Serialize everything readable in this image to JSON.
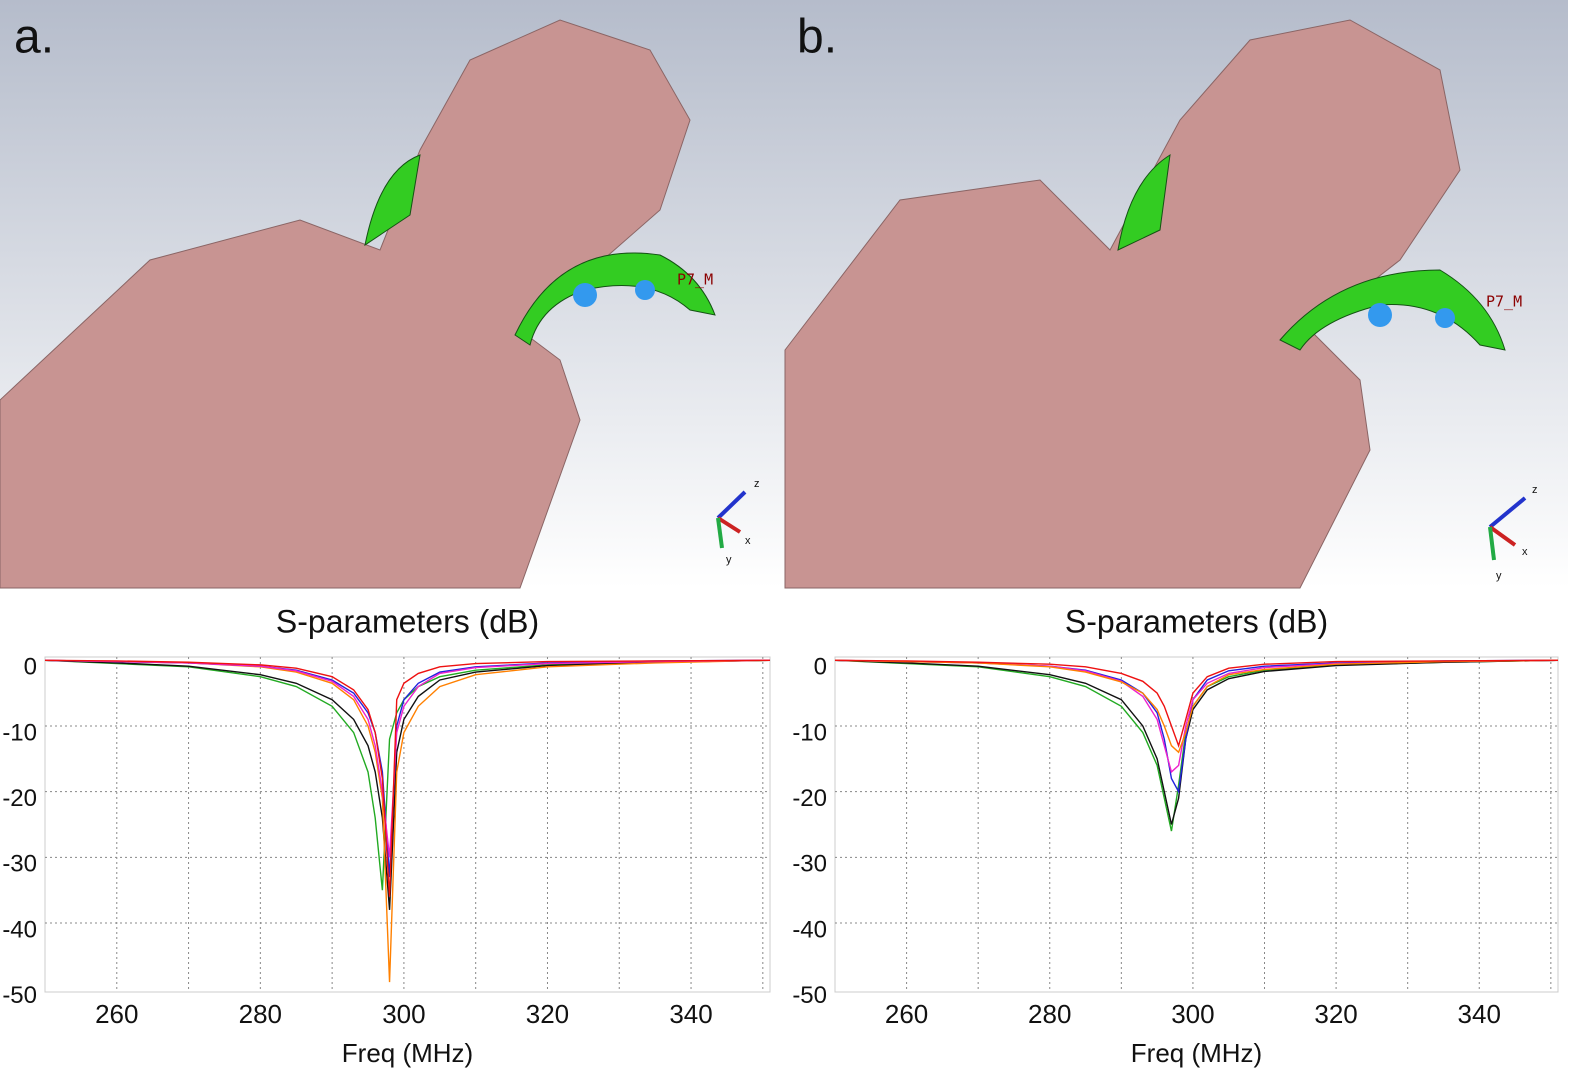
{
  "panels": [
    {
      "label": "a.",
      "annotation": "P7_M",
      "triad": [
        "z",
        "x",
        "y"
      ]
    },
    {
      "label": "b.",
      "annotation": "P7_M",
      "triad": [
        "z",
        "x",
        "y"
      ]
    }
  ],
  "chart_data": [
    {
      "type": "line",
      "title": "S-parameters (dB)",
      "xlabel": "Freq (MHz)",
      "x": [
        250,
        260,
        270,
        280,
        285,
        290,
        293,
        295,
        296,
        297,
        298,
        299,
        300,
        302,
        305,
        310,
        320,
        335,
        351
      ],
      "xlim": [
        250,
        351
      ],
      "xticks": [
        260,
        280,
        300,
        320,
        340
      ],
      "xgrid": [
        270,
        290,
        310,
        330,
        350
      ],
      "ylim": [
        -50.5,
        0.5
      ],
      "yticks": [
        0,
        -10,
        -20,
        -30,
        -40,
        -50
      ],
      "grid": true,
      "series": [
        {
          "color": "#22aa22",
          "values": [
            0,
            -0.5,
            -1,
            -2.5,
            -4,
            -7,
            -11,
            -17,
            -24,
            -35,
            -12,
            -8,
            -6,
            -4,
            -2.5,
            -1.5,
            -0.7,
            -0.3,
            0
          ]
        },
        {
          "color": "#111111",
          "values": [
            0,
            -0.4,
            -0.9,
            -2.2,
            -3.5,
            -6,
            -9,
            -13,
            -17,
            -24,
            -38,
            -14,
            -9,
            -5.5,
            -3,
            -1.8,
            -0.8,
            -0.3,
            0
          ]
        },
        {
          "color": "#ff8000",
          "values": [
            0,
            -0.2,
            -0.4,
            -1,
            -1.8,
            -3.5,
            -6,
            -10,
            -14,
            -21,
            -49,
            -17,
            -11,
            -7,
            -4,
            -2.2,
            -1,
            -0.4,
            0
          ]
        },
        {
          "color": "#2222dd",
          "values": [
            0,
            -0.2,
            -0.4,
            -0.9,
            -1.5,
            -3,
            -5,
            -8,
            -11,
            -17,
            -33,
            -10,
            -6,
            -3.5,
            -1.8,
            -1,
            -0.4,
            -0.1,
            0
          ]
        },
        {
          "color": "#ee22cc",
          "values": [
            0,
            -0.2,
            -0.4,
            -0.9,
            -1.6,
            -3.2,
            -5.5,
            -9,
            -13,
            -20,
            -30,
            -11,
            -7,
            -4,
            -2,
            -1.1,
            -0.5,
            -0.2,
            0
          ]
        },
        {
          "color": "#ee1111",
          "values": [
            0,
            -0.1,
            -0.3,
            -0.7,
            -1.2,
            -2.5,
            -4.5,
            -7.5,
            -11,
            -18,
            -36,
            -6,
            -3.5,
            -2,
            -1,
            -0.5,
            -0.2,
            -0.1,
            0
          ]
        }
      ]
    },
    {
      "type": "line",
      "title": "S-parameters (dB)",
      "xlabel": "Freq (MHz)",
      "x": [
        250,
        260,
        270,
        280,
        285,
        290,
        293,
        295,
        296,
        297,
        298,
        299,
        300,
        302,
        305,
        310,
        320,
        335,
        351
      ],
      "xlim": [
        250,
        351
      ],
      "xticks": [
        260,
        280,
        300,
        320,
        340
      ],
      "xgrid": [
        270,
        290,
        310,
        330,
        350
      ],
      "ylim": [
        -50.5,
        0.5
      ],
      "yticks": [
        0,
        -10,
        -20,
        -30,
        -40,
        -50
      ],
      "grid": true,
      "series": [
        {
          "color": "#22aa22",
          "values": [
            0,
            -0.5,
            -1,
            -2.5,
            -4,
            -7,
            -11,
            -16,
            -21,
            -26,
            -19,
            -11,
            -7,
            -4,
            -2.5,
            -1.5,
            -0.7,
            -0.3,
            0
          ]
        },
        {
          "color": "#111111",
          "values": [
            0,
            -0.4,
            -0.9,
            -2.2,
            -3.5,
            -6,
            -10,
            -15,
            -20,
            -25,
            -21,
            -12,
            -7.5,
            -4.5,
            -2.8,
            -1.7,
            -0.8,
            -0.3,
            0
          ]
        },
        {
          "color": "#2222dd",
          "values": [
            0,
            -0.2,
            -0.4,
            -0.9,
            -1.5,
            -3,
            -5,
            -8,
            -12,
            -18,
            -20,
            -12,
            -6,
            -3,
            -1.6,
            -0.9,
            -0.4,
            -0.1,
            0
          ]
        },
        {
          "color": "#ee22cc",
          "values": [
            0,
            -0.2,
            -0.4,
            -0.9,
            -1.6,
            -3.2,
            -5.5,
            -9,
            -13,
            -17,
            -16,
            -10,
            -6,
            -3.5,
            -2,
            -1.1,
            -0.5,
            -0.2,
            0
          ]
        },
        {
          "color": "#ff8000",
          "values": [
            0,
            -0.2,
            -0.4,
            -1,
            -1.8,
            -3.3,
            -5,
            -7.5,
            -10,
            -13,
            -14,
            -11,
            -7,
            -4,
            -2.2,
            -1.4,
            -0.6,
            -0.2,
            0
          ]
        },
        {
          "color": "#ee1111",
          "values": [
            0,
            -0.1,
            -0.3,
            -0.6,
            -1,
            -2,
            -3.2,
            -5,
            -7,
            -10,
            -13,
            -9,
            -5,
            -2.5,
            -1.2,
            -0.6,
            -0.2,
            -0.1,
            0
          ]
        }
      ]
    }
  ]
}
